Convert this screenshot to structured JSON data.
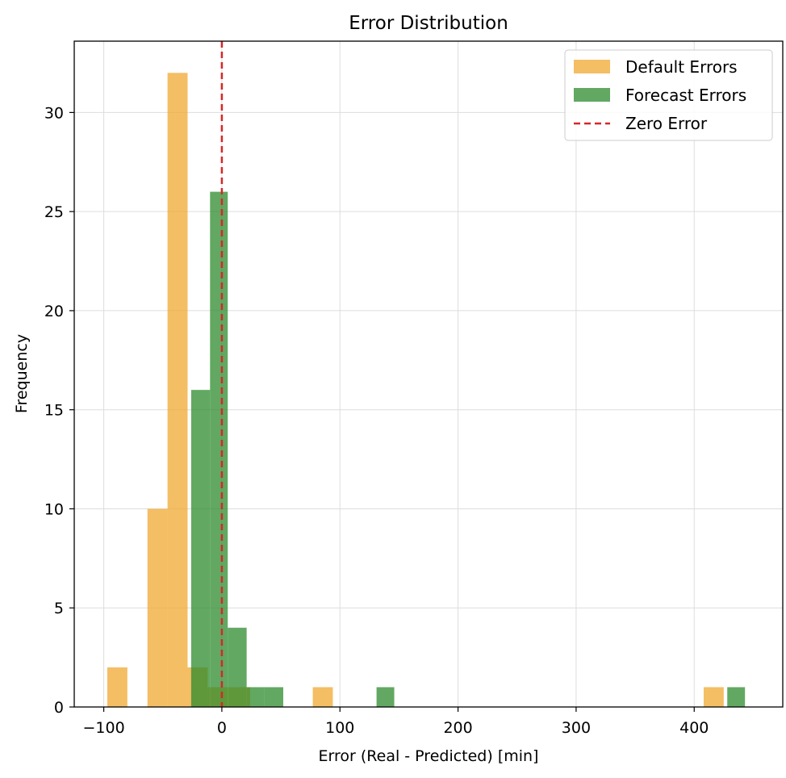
{
  "chart_data": {
    "type": "bar",
    "title": "Error Distribution",
    "xlabel": "Error (Real - Predicted) [min]",
    "ylabel": "Frequency",
    "xlim": [
      -125,
      475
    ],
    "ylim": [
      0,
      33.6
    ],
    "xticks": [
      -100,
      0,
      100,
      200,
      300,
      400
    ],
    "xtick_labels": [
      "−100",
      "0",
      "100",
      "200",
      "300",
      "400"
    ],
    "yticks": [
      0,
      5,
      10,
      15,
      20,
      25,
      30
    ],
    "ytick_labels": [
      "0",
      "5",
      "10",
      "15",
      "20",
      "25",
      "30"
    ],
    "grid": true,
    "legend_position": "top-right",
    "series": [
      {
        "name": "Default Errors",
        "color": "#f0a830",
        "opacity": 0.75,
        "bins": [
          {
            "x0": -97,
            "x1": -80,
            "count": 2
          },
          {
            "x0": -63,
            "x1": -46,
            "count": 10
          },
          {
            "x0": -46,
            "x1": -29,
            "count": 32
          },
          {
            "x0": -29,
            "x1": -12,
            "count": 2
          },
          {
            "x0": -12,
            "x1": 5,
            "count": 1
          },
          {
            "x0": 5,
            "x1": 24,
            "count": 1
          },
          {
            "x0": 77,
            "x1": 94,
            "count": 1
          },
          {
            "x0": 408,
            "x1": 425,
            "count": 1
          }
        ]
      },
      {
        "name": "Forecast Errors",
        "color": "#2e8b2e",
        "opacity": 0.75,
        "bins": [
          {
            "x0": -26,
            "x1": -10,
            "count": 16
          },
          {
            "x0": -10,
            "x1": 5,
            "count": 26
          },
          {
            "x0": 5,
            "x1": 21,
            "count": 4
          },
          {
            "x0": 21,
            "x1": 36,
            "count": 1
          },
          {
            "x0": 36,
            "x1": 52,
            "count": 1
          },
          {
            "x0": 131,
            "x1": 146,
            "count": 1
          },
          {
            "x0": 428,
            "x1": 443,
            "count": 1
          }
        ]
      }
    ],
    "reference_line": {
      "name": "Zero Error",
      "x": 0,
      "color": "#d62728",
      "style": "dashed"
    }
  }
}
